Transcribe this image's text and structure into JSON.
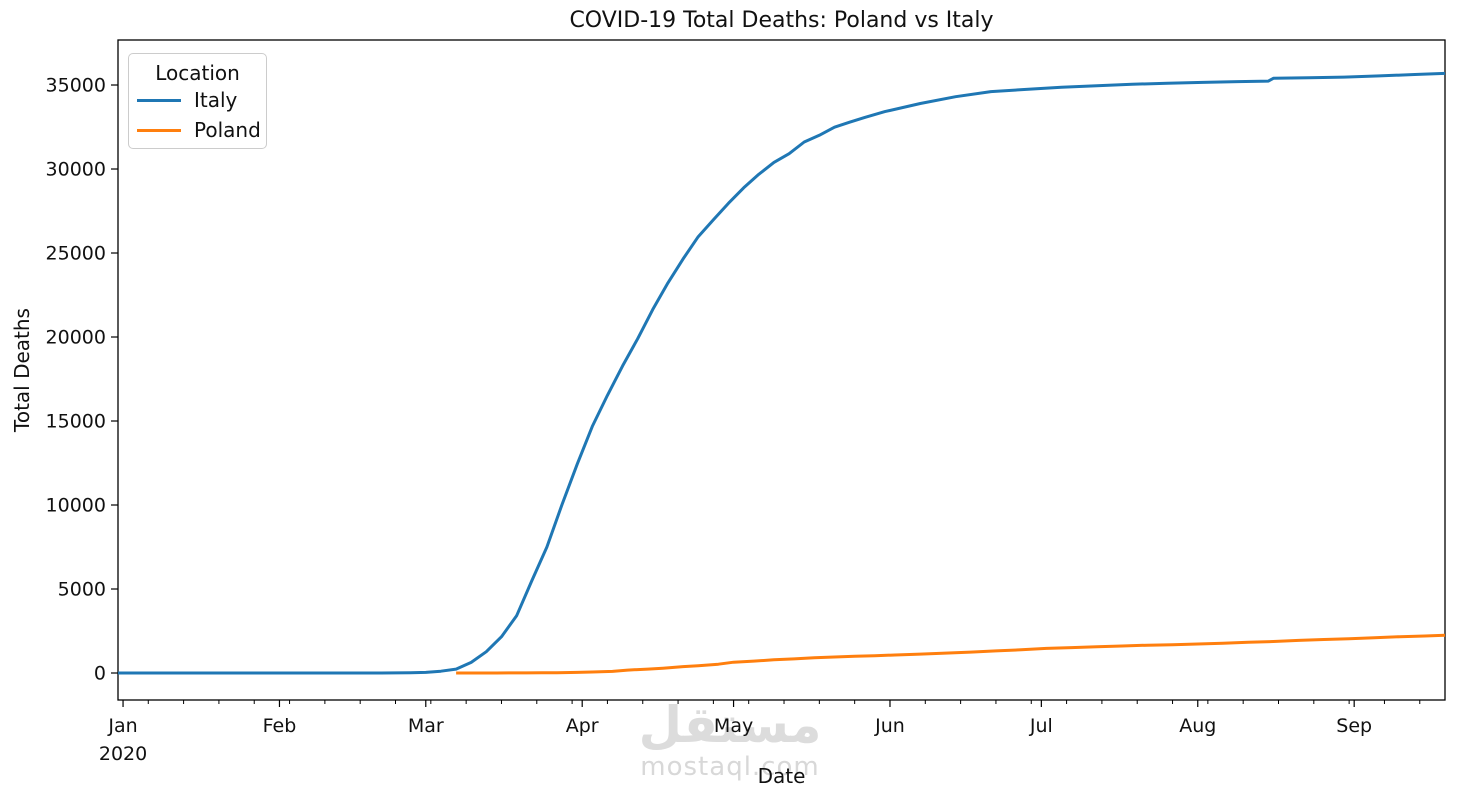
{
  "watermark": {
    "logo": "مستقل",
    "site": "mostaql.com",
    "color": "#d8d8d8"
  },
  "chart_data": {
    "type": "line",
    "title": "COVID-19 Total Deaths: Poland vs Italy",
    "xlabel": "Date",
    "ylabel": "Total Deaths",
    "grid": false,
    "legend": {
      "title": "Location",
      "position": "upper left",
      "entries": [
        "Italy",
        "Poland"
      ]
    },
    "x_range": [
      "2019-12-31",
      "2020-09-19"
    ],
    "ylim": [
      -1607,
      37679
    ],
    "y_ticks": [
      0,
      5000,
      10000,
      15000,
      20000,
      25000,
      30000,
      35000
    ],
    "x_offset_label": "2020",
    "x_major_ticks": [
      {
        "date": "2020-01-01",
        "label": "Jan"
      },
      {
        "date": "2020-02-01",
        "label": "Feb"
      },
      {
        "date": "2020-03-01",
        "label": "Mar"
      },
      {
        "date": "2020-04-01",
        "label": "Apr"
      },
      {
        "date": "2020-05-01",
        "label": "May"
      },
      {
        "date": "2020-06-01",
        "label": "Jun"
      },
      {
        "date": "2020-07-01",
        "label": "Jul"
      },
      {
        "date": "2020-08-01",
        "label": "Aug"
      },
      {
        "date": "2020-09-01",
        "label": "Sep"
      }
    ],
    "x_minor_tick_dates": [
      "2020-01-06",
      "2020-01-13",
      "2020-01-20",
      "2020-01-27",
      "2020-02-03",
      "2020-02-10",
      "2020-02-17",
      "2020-02-24",
      "2020-03-02",
      "2020-03-09",
      "2020-03-16",
      "2020-03-23",
      "2020-03-30",
      "2020-04-06",
      "2020-04-13",
      "2020-04-20",
      "2020-04-27",
      "2020-05-04",
      "2020-05-11",
      "2020-05-18",
      "2020-05-25",
      "2020-06-08",
      "2020-06-15",
      "2020-06-22",
      "2020-06-29",
      "2020-07-06",
      "2020-07-13",
      "2020-07-20",
      "2020-07-27",
      "2020-08-03",
      "2020-08-10",
      "2020-08-17",
      "2020-08-24",
      "2020-08-31",
      "2020-09-07",
      "2020-09-14"
    ],
    "series": [
      {
        "name": "Italy",
        "color": "#1f77b4",
        "points": [
          [
            "2019-12-31",
            0
          ],
          [
            "2020-01-15",
            0
          ],
          [
            "2020-02-01",
            0
          ],
          [
            "2020-02-15",
            0
          ],
          [
            "2020-02-21",
            1
          ],
          [
            "2020-02-24",
            7
          ],
          [
            "2020-02-27",
            17
          ],
          [
            "2020-03-01",
            34
          ],
          [
            "2020-03-04",
            107
          ],
          [
            "2020-03-07",
            233
          ],
          [
            "2020-03-10",
            631
          ],
          [
            "2020-03-13",
            1266
          ],
          [
            "2020-03-16",
            2158
          ],
          [
            "2020-03-19",
            3405
          ],
          [
            "2020-03-22",
            5476
          ],
          [
            "2020-03-25",
            7503
          ],
          [
            "2020-03-28",
            10023
          ],
          [
            "2020-03-31",
            12428
          ],
          [
            "2020-04-03",
            14681
          ],
          [
            "2020-04-06",
            16523
          ],
          [
            "2020-04-09",
            18279
          ],
          [
            "2020-04-12",
            19899
          ],
          [
            "2020-04-15",
            21645
          ],
          [
            "2020-04-18",
            23227
          ],
          [
            "2020-04-21",
            24648
          ],
          [
            "2020-04-24",
            25969
          ],
          [
            "2020-04-27",
            26977
          ],
          [
            "2020-04-30",
            27967
          ],
          [
            "2020-05-03",
            28884
          ],
          [
            "2020-05-06",
            29684
          ],
          [
            "2020-05-09",
            30395
          ],
          [
            "2020-05-12",
            30911
          ],
          [
            "2020-05-15",
            31610
          ],
          [
            "2020-05-18",
            32007
          ],
          [
            "2020-05-21",
            32486
          ],
          [
            "2020-05-24",
            32785
          ],
          [
            "2020-05-27",
            33072
          ],
          [
            "2020-05-31",
            33415
          ],
          [
            "2020-06-07",
            33899
          ],
          [
            "2020-06-14",
            34301
          ],
          [
            "2020-06-21",
            34610
          ],
          [
            "2020-06-28",
            34738
          ],
          [
            "2020-07-05",
            34861
          ],
          [
            "2020-07-12",
            34954
          ],
          [
            "2020-07-19",
            35045
          ],
          [
            "2020-07-26",
            35107
          ],
          [
            "2020-08-02",
            35154
          ],
          [
            "2020-08-09",
            35205
          ],
          [
            "2020-08-15",
            35231
          ],
          [
            "2020-08-16",
            35400
          ],
          [
            "2020-08-23",
            35437
          ],
          [
            "2020-08-30",
            35473
          ],
          [
            "2020-09-06",
            35541
          ],
          [
            "2020-09-13",
            35624
          ],
          [
            "2020-09-19",
            35692
          ]
        ]
      },
      {
        "name": "Poland",
        "color": "#ff7f0e",
        "points": [
          [
            "2020-03-07",
            0
          ],
          [
            "2020-03-12",
            1
          ],
          [
            "2020-03-15",
            3
          ],
          [
            "2020-03-18",
            5
          ],
          [
            "2020-03-21",
            7
          ],
          [
            "2020-03-24",
            12
          ],
          [
            "2020-03-27",
            16
          ],
          [
            "2020-03-31",
            33
          ],
          [
            "2020-04-03",
            57
          ],
          [
            "2020-04-07",
            96
          ],
          [
            "2020-04-10",
            174
          ],
          [
            "2020-04-14",
            232
          ],
          [
            "2020-04-17",
            286
          ],
          [
            "2020-04-21",
            380
          ],
          [
            "2020-04-24",
            434
          ],
          [
            "2020-04-28",
            524
          ],
          [
            "2020-05-01",
            644
          ],
          [
            "2020-05-05",
            707
          ],
          [
            "2020-05-09",
            785
          ],
          [
            "2020-05-13",
            839
          ],
          [
            "2020-05-17",
            907
          ],
          [
            "2020-05-21",
            952
          ],
          [
            "2020-05-25",
            996
          ],
          [
            "2020-05-29",
            1028
          ],
          [
            "2020-06-02",
            1074
          ],
          [
            "2020-06-07",
            1124
          ],
          [
            "2020-06-12",
            1183
          ],
          [
            "2020-06-17",
            1247
          ],
          [
            "2020-06-22",
            1316
          ],
          [
            "2020-06-27",
            1379
          ],
          [
            "2020-07-02",
            1463
          ],
          [
            "2020-07-07",
            1512
          ],
          [
            "2020-07-12",
            1560
          ],
          [
            "2020-07-17",
            1605
          ],
          [
            "2020-07-22",
            1656
          ],
          [
            "2020-07-27",
            1682
          ],
          [
            "2020-08-01",
            1725
          ],
          [
            "2020-08-06",
            1774
          ],
          [
            "2020-08-11",
            1827
          ],
          [
            "2020-08-16",
            1877
          ],
          [
            "2020-08-21",
            1938
          ],
          [
            "2020-08-26",
            1992
          ],
          [
            "2020-08-31",
            2039
          ],
          [
            "2020-09-05",
            2093
          ],
          [
            "2020-09-10",
            2159
          ],
          [
            "2020-09-15",
            2203
          ],
          [
            "2020-09-19",
            2253
          ]
        ]
      }
    ]
  }
}
